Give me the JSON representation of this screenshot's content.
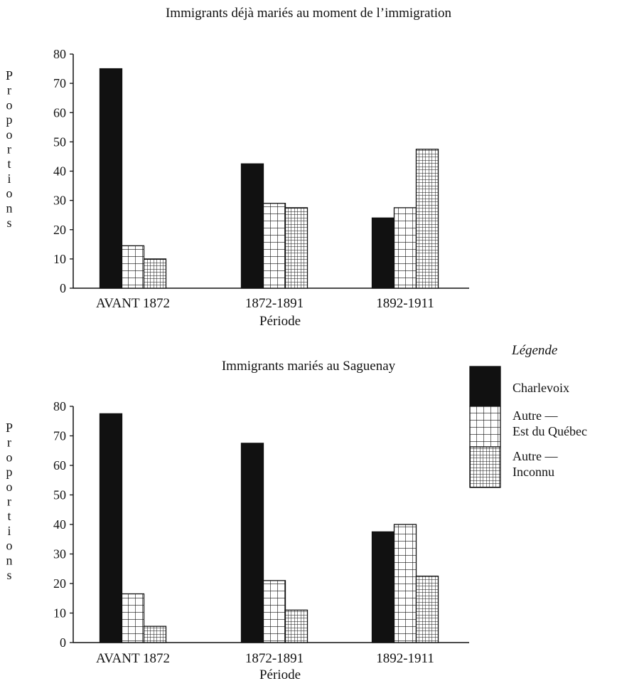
{
  "chart_data": [
    {
      "type": "bar",
      "title": "Immigrants déjà mariés au moment de l’immigration",
      "xlabel": "Période",
      "ylabel": "Proportions",
      "ylim": [
        0,
        80
      ],
      "yticks": [
        "0",
        "10",
        "20",
        "30",
        "40",
        "50",
        "60",
        "70",
        "80"
      ],
      "categories": [
        "AVANT 1872",
        "1872-1891",
        "1892-1911"
      ],
      "series": [
        {
          "name": "Charlevoix",
          "values": [
            75,
            42.5,
            24
          ]
        },
        {
          "name": "Autre — Est du Québec",
          "values": [
            14.5,
            29,
            27.5
          ]
        },
        {
          "name": "Autre — Inconnu",
          "values": [
            10,
            27.5,
            47.5
          ]
        }
      ]
    },
    {
      "type": "bar",
      "title": "Immigrants mariés au Saguenay",
      "xlabel": "Période",
      "ylabel": "Proportions",
      "ylim": [
        0,
        80
      ],
      "yticks": [
        "0",
        "10",
        "20",
        "30",
        "40",
        "50",
        "60",
        "70",
        "80"
      ],
      "categories": [
        "AVANT 1872",
        "1872-1891",
        "1892-1911"
      ],
      "series": [
        {
          "name": "Charlevoix",
          "values": [
            77.5,
            67.5,
            37.5
          ]
        },
        {
          "name": "Autre — Est du Québec",
          "values": [
            16.5,
            21,
            40
          ]
        },
        {
          "name": "Autre — Inconnu",
          "values": [
            5.5,
            11,
            22.5
          ]
        }
      ]
    }
  ],
  "legend": {
    "title": "Légende",
    "items": [
      {
        "lines": [
          "Charlevoix"
        ],
        "pattern": "solid-black"
      },
      {
        "lines": [
          "Autre —",
          "Est du Québec"
        ],
        "pattern": "coarse-grid"
      },
      {
        "lines": [
          "Autre —",
          "Inconnu"
        ],
        "pattern": "fine-grid"
      }
    ]
  }
}
